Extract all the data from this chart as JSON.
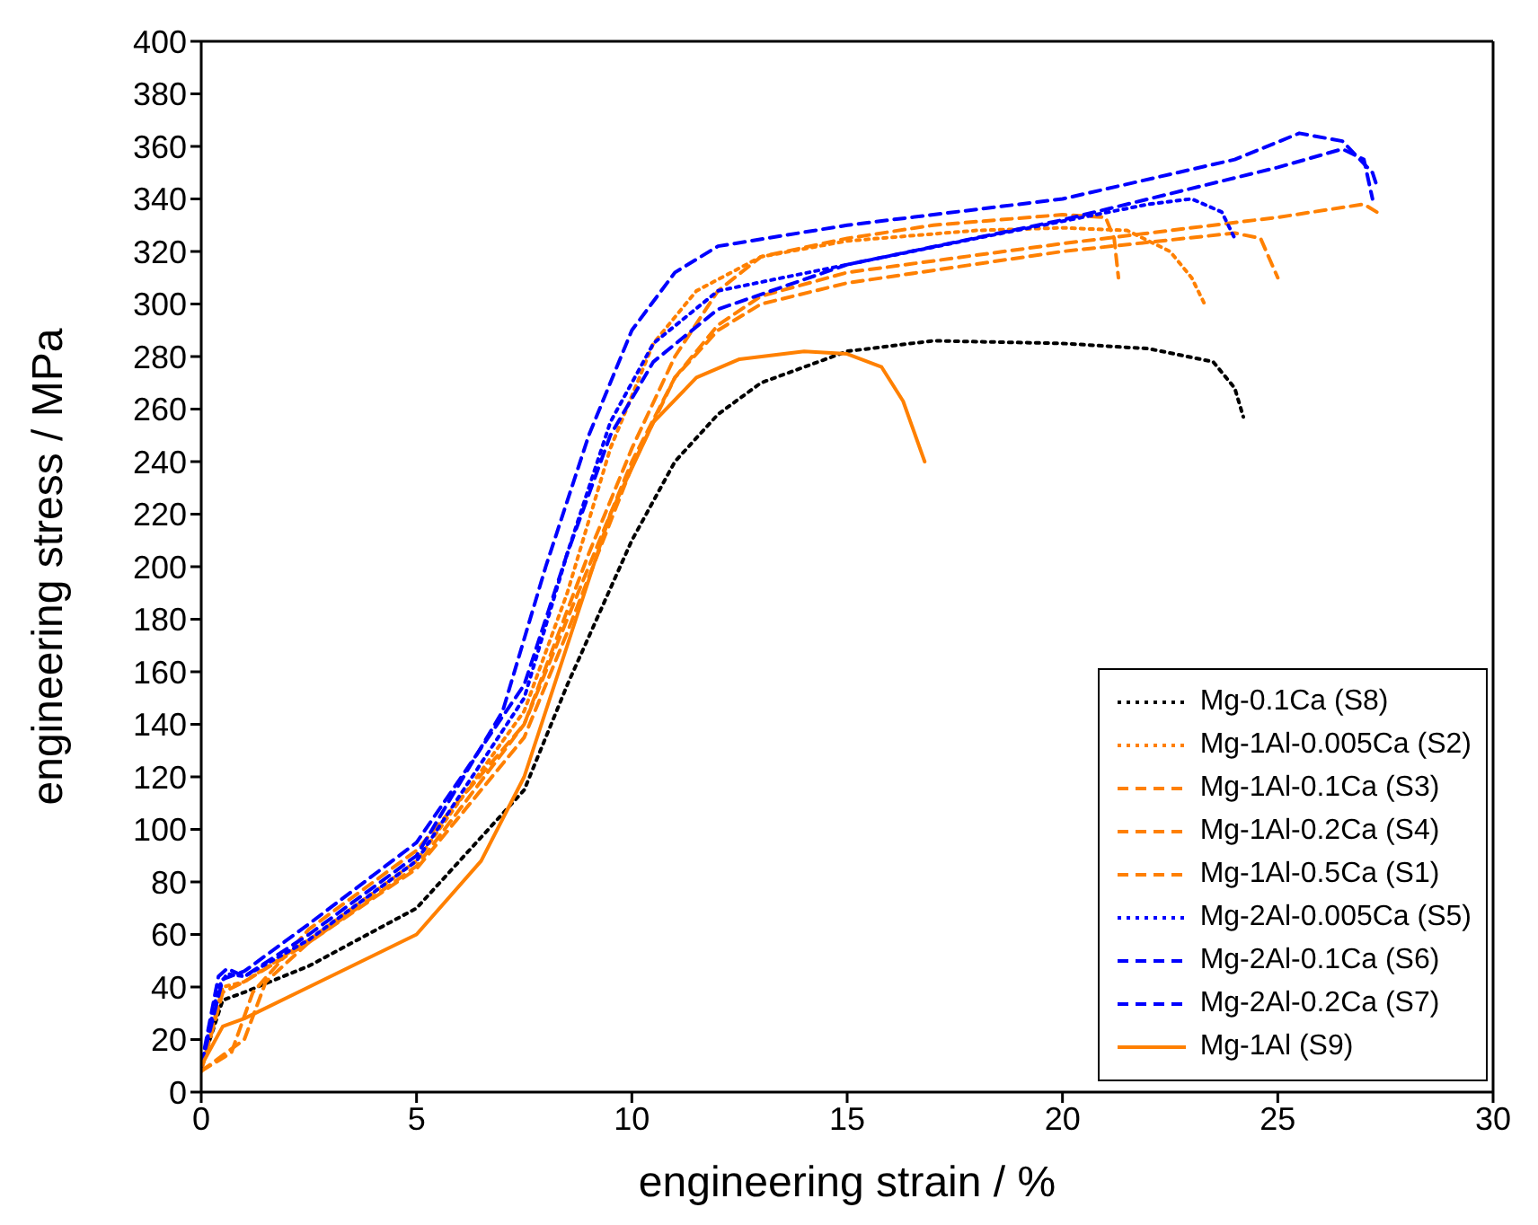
{
  "chart_data": {
    "type": "line",
    "xlabel": "engineering strain / %",
    "ylabel": "engineering stress / MPa",
    "xlim": [
      0,
      30
    ],
    "xticks": [
      0,
      5,
      10,
      15,
      20,
      25,
      30
    ],
    "ylim": [
      0,
      400
    ],
    "yticks": [
      0,
      20,
      40,
      60,
      80,
      100,
      120,
      140,
      160,
      180,
      200,
      220,
      240,
      260,
      280,
      300,
      320,
      340,
      360,
      380,
      400
    ],
    "grid": false,
    "legend": "bottom right",
    "marker": "none",
    "series": [
      {
        "name": "Mg-0.1Ca (S8)",
        "color": "#000000",
        "line_style": "dotted",
        "x": [
          0,
          0.5,
          1,
          2.5,
          5,
          7.5,
          8.5,
          10,
          11,
          12,
          13,
          15,
          17,
          20,
          22,
          23.5,
          24,
          24.2
        ],
        "values": [
          10,
          35,
          38,
          48,
          70,
          115,
          155,
          210,
          240,
          258,
          270,
          282,
          286,
          285,
          283,
          278,
          268,
          257
        ]
      },
      {
        "name": "Mg-1Al-0.005Ca (S2)",
        "color": "#ff8000",
        "line_style": "dotted",
        "x": [
          0,
          0.5,
          1,
          2.5,
          5,
          7.5,
          8.5,
          9.5,
          10.5,
          11.5,
          13,
          15,
          18,
          20,
          21.5,
          22.5,
          23,
          23.3
        ],
        "values": [
          8,
          40,
          42,
          58,
          88,
          145,
          190,
          245,
          285,
          305,
          318,
          324,
          328,
          329,
          328,
          320,
          310,
          300
        ]
      },
      {
        "name": "Mg-1Al-0.1Ca (S3)",
        "color": "#ff8000",
        "line_style": "dashed",
        "x": [
          0,
          0.5,
          1,
          2.5,
          5,
          7.5,
          8.5,
          10,
          11,
          12,
          13,
          15,
          20,
          24,
          24.6,
          25
        ],
        "values": [
          8,
          38,
          42,
          57,
          86,
          140,
          180,
          240,
          272,
          290,
          300,
          308,
          320,
          327,
          325,
          310
        ]
      },
      {
        "name": "Mg-1Al-0.2Ca (S4)",
        "color": "#ff8000",
        "line_style": "dashed",
        "x": [
          0,
          1,
          1.5,
          2.5,
          5,
          7.5,
          8.5,
          10,
          11,
          12,
          13,
          15,
          20,
          25,
          27,
          27.3
        ],
        "values": [
          8,
          20,
          42,
          57,
          85,
          135,
          175,
          238,
          272,
          292,
          303,
          312,
          323,
          333,
          338,
          335
        ]
      },
      {
        "name": "Mg-1Al-0.5Ca (S1)",
        "color": "#ff8000",
        "line_style": "dashed",
        "x": [
          0,
          0.7,
          1.2,
          2.5,
          5,
          7.5,
          9,
          10,
          11,
          12,
          13,
          15,
          17,
          20,
          21,
          21.2,
          21.3
        ],
        "values": [
          8,
          15,
          38,
          62,
          92,
          140,
          205,
          245,
          280,
          305,
          318,
          325,
          330,
          334,
          333,
          325,
          310
        ]
      },
      {
        "name": "Mg-2Al-0.005Ca (S5)",
        "color": "#0000ff",
        "line_style": "dotted",
        "x": [
          0,
          0.4,
          0.6,
          1,
          2.5,
          5,
          7.5,
          8.5,
          9.5,
          10.5,
          12,
          15,
          18,
          22,
          23,
          23.7,
          24
        ],
        "values": [
          10,
          40,
          45,
          44,
          58,
          88,
          150,
          205,
          255,
          285,
          305,
          315,
          325,
          338,
          340,
          335,
          325
        ]
      },
      {
        "name": "Mg-2Al-0.1Ca (S6)",
        "color": "#0000ff",
        "line_style": "dashed",
        "x": [
          0,
          0.4,
          0.6,
          1,
          2.5,
          5,
          7,
          8,
          9,
          10,
          11,
          12,
          15,
          20,
          24,
          25.5,
          26.5,
          27.2,
          27.3
        ],
        "values": [
          10,
          44,
          47,
          44,
          60,
          90,
          145,
          200,
          250,
          290,
          312,
          322,
          330,
          340,
          355,
          365,
          362,
          350,
          345
        ]
      },
      {
        "name": "Mg-2Al-0.2Ca (S7)",
        "color": "#0000ff",
        "line_style": "dashed",
        "x": [
          0,
          0.5,
          1,
          2.5,
          5,
          7.5,
          8.5,
          9.5,
          10.5,
          12,
          15,
          20,
          25,
          26.5,
          27,
          27.2
        ],
        "values": [
          10,
          43,
          46,
          64,
          95,
          155,
          205,
          250,
          278,
          298,
          315,
          332,
          352,
          359,
          355,
          340
        ]
      },
      {
        "name": "Mg-1Al (S9)",
        "color": "#ff8000",
        "line_style": "solid",
        "x": [
          0,
          0.5,
          1,
          2.5,
          5,
          6.5,
          7.5,
          8.5,
          9.5,
          10.5,
          11.5,
          12.5,
          14,
          15,
          15.8,
          16.3,
          16.8
        ],
        "values": [
          10,
          25,
          28,
          40,
          60,
          88,
          120,
          170,
          220,
          255,
          272,
          279,
          282,
          281,
          276,
          263,
          240
        ]
      }
    ]
  }
}
